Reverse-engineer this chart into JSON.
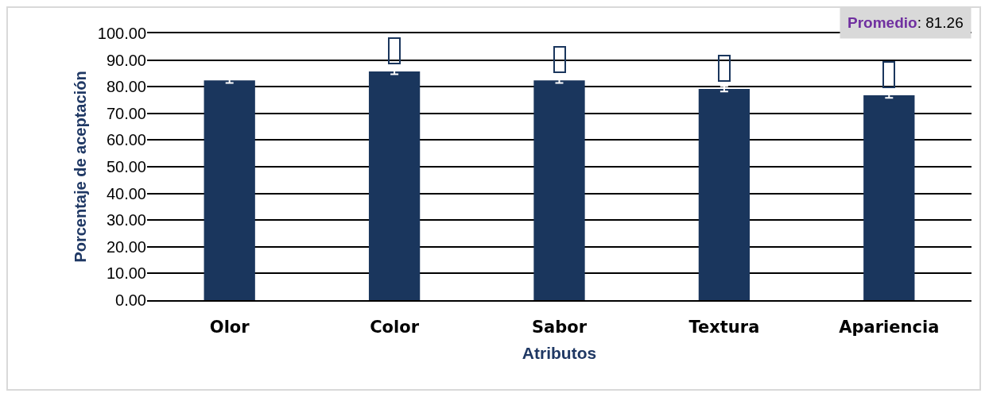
{
  "chart_data": {
    "type": "bar",
    "xlabel": "Atributos",
    "ylabel": "Porcentaje de aceptación",
    "categories": [
      "Olor",
      "Color",
      "Sabor",
      "Textura",
      "Apariencia"
    ],
    "values": [
      82.4,
      85.7,
      82.4,
      79.2,
      76.8
    ],
    "errors": [
      1,
      1,
      1,
      1,
      1
    ],
    "color": "#1a365d",
    "ylim": [
      0,
      100
    ],
    "yticks": [
      {
        "value": 0,
        "label": "0.00"
      },
      {
        "value": 10,
        "label": "10.00"
      },
      {
        "value": 20,
        "label": "20.00"
      },
      {
        "value": 30,
        "label": "30.00"
      },
      {
        "value": 40,
        "label": "40.00"
      },
      {
        "value": 50,
        "label": "50.00"
      },
      {
        "value": 60,
        "label": "60.00"
      },
      {
        "value": 70,
        "label": "70.00"
      },
      {
        "value": 80,
        "label": "80.00"
      },
      {
        "value": 90,
        "label": "90.00"
      },
      {
        "value": 100,
        "label": "100.00"
      }
    ],
    "grid": "y",
    "annotations": [
      "Promedio: 81.26"
    ]
  }
}
